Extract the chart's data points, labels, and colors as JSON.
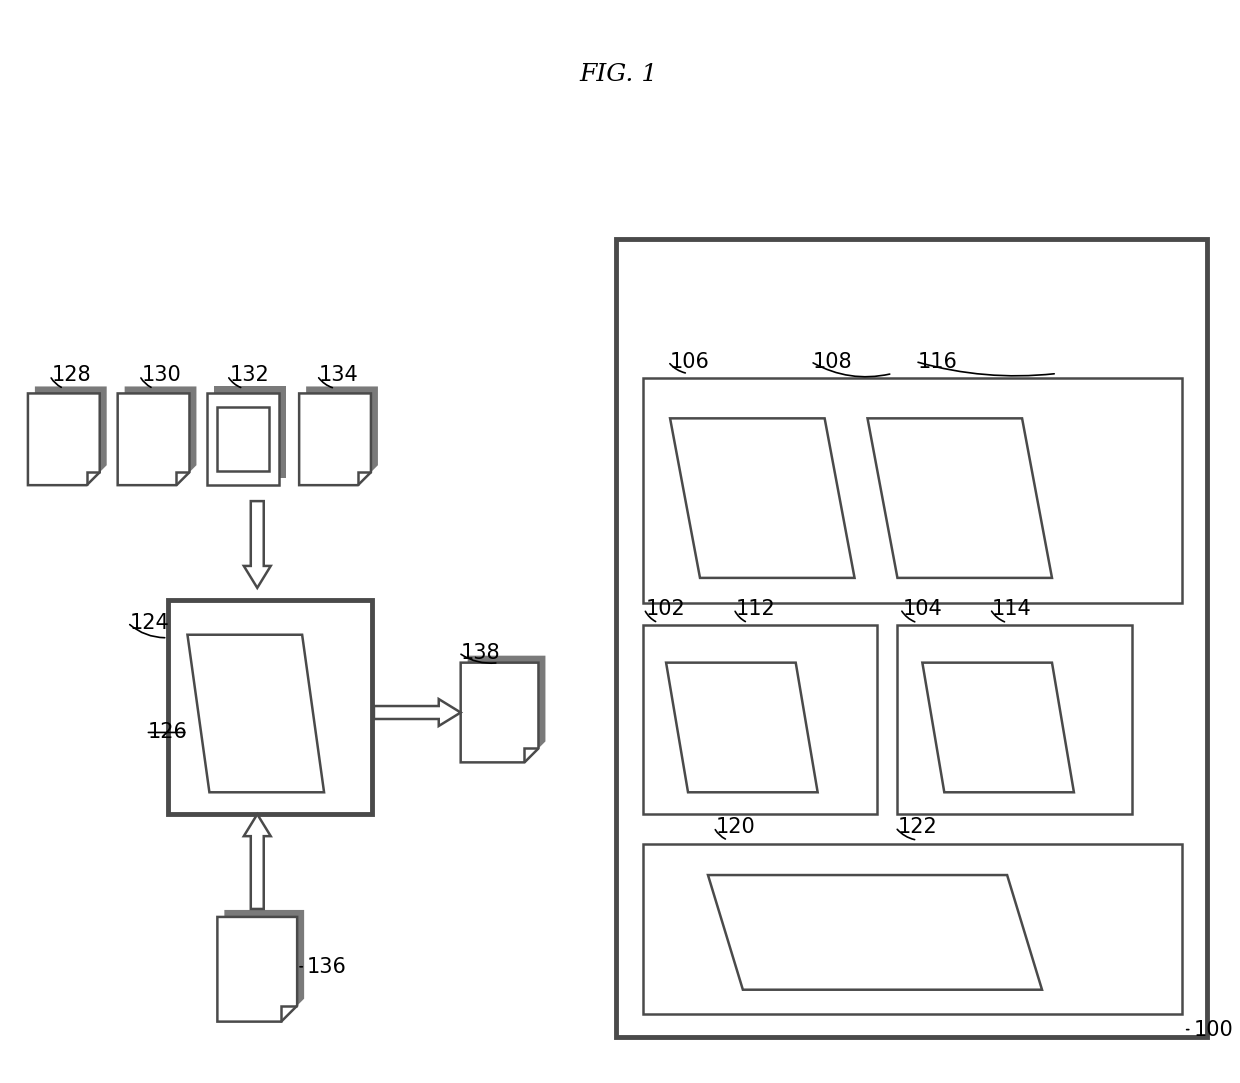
{
  "bg_color": "#ffffff",
  "line_color": "#4a4a4a",
  "fig_caption": "FIG. 1",
  "shadow_color": "#7a7a7a"
}
